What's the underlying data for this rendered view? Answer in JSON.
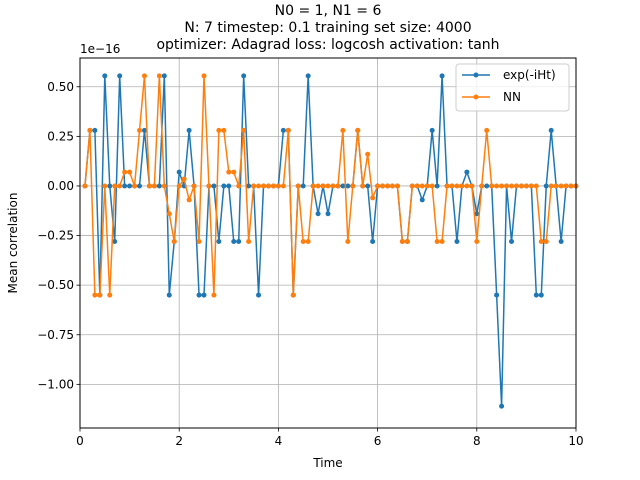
{
  "chart_data": {
    "type": "line",
    "title_lines": [
      "N0 = 1, N1 = 6",
      "N: 7 timestep: 0.1 training set size: 4000",
      "optimizer: Adagrad loss: logcosh activation: tanh"
    ],
    "xlabel": "Time",
    "ylabel": "Mean correlation",
    "offset_label": "1e−16",
    "xlim": [
      0,
      10
    ],
    "ylim": [
      -1.22,
      0.645
    ],
    "xticks": [
      0,
      2,
      4,
      6,
      8,
      10
    ],
    "xtick_labels": [
      "0",
      "2",
      "4",
      "6",
      "8",
      "10"
    ],
    "yticks": [
      0.5,
      0.25,
      0.0,
      -0.25,
      -0.5,
      -0.75,
      -1.0
    ],
    "ytick_labels": [
      "0.50",
      "0.25",
      "0.00",
      "−0.25",
      "−0.50",
      "−0.75",
      "−1.00"
    ],
    "grid": true,
    "legend_position": "top-right",
    "x": [
      0.1,
      0.2,
      0.3,
      0.4,
      0.5,
      0.6,
      0.7,
      0.8,
      0.9,
      1.0,
      1.1,
      1.2,
      1.3,
      1.4,
      1.5,
      1.6,
      1.7,
      1.8,
      1.9,
      2.0,
      2.1,
      2.2,
      2.3,
      2.4,
      2.5,
      2.6,
      2.7,
      2.8,
      2.9,
      3.0,
      3.1,
      3.2,
      3.3,
      3.4,
      3.5,
      3.6,
      3.7,
      3.8,
      3.9,
      4.0,
      4.1,
      4.2,
      4.3,
      4.4,
      4.5,
      4.6,
      4.7,
      4.8,
      4.9,
      5.0,
      5.1,
      5.2,
      5.3,
      5.4,
      5.5,
      5.6,
      5.7,
      5.8,
      5.9,
      6.0,
      6.1,
      6.2,
      6.3,
      6.4,
      6.5,
      6.6,
      6.7,
      6.8,
      6.9,
      7.0,
      7.1,
      7.2,
      7.3,
      7.4,
      7.5,
      7.6,
      7.7,
      7.8,
      7.9,
      8.0,
      8.1,
      8.2,
      8.3,
      8.4,
      8.5,
      8.6,
      8.7,
      8.8,
      8.9,
      9.0,
      9.1,
      9.2,
      9.3,
      9.4,
      9.5,
      9.6,
      9.7,
      9.8,
      9.9,
      10.0
    ],
    "series": [
      {
        "name": "exp(-iHt)",
        "color": "#1f77b4",
        "values": [
          0.0,
          0.28,
          0.28,
          -0.55,
          0.555,
          0.0,
          -0.28,
          0.555,
          0.0,
          0.0,
          0.0,
          0.0,
          0.28,
          0.0,
          0.0,
          0.0,
          0.555,
          -0.55,
          -0.28,
          0.07,
          0.0,
          0.28,
          0.0,
          -0.55,
          -0.55,
          0.0,
          0.0,
          -0.28,
          0.0,
          0.0,
          -0.28,
          -0.28,
          0.555,
          0.0,
          0.0,
          -0.55,
          0.0,
          0.0,
          0.0,
          0.0,
          0.28,
          0.28,
          -0.55,
          0.0,
          0.0,
          0.555,
          0.0,
          -0.14,
          0.0,
          -0.14,
          0.0,
          0.0,
          0.0,
          0.0,
          0.0,
          0.28,
          0.0,
          0.0,
          -0.28,
          0.0,
          0.0,
          0.0,
          0.0,
          0.0,
          -0.28,
          -0.28,
          0.0,
          0.0,
          -0.07,
          0.0,
          0.28,
          0.0,
          0.555,
          0.0,
          0.0,
          -0.28,
          0.0,
          0.07,
          0.0,
          -0.14,
          0.0,
          0.0,
          0.0,
          -0.55,
          -1.11,
          0.0,
          -0.28,
          0.0,
          0.0,
          0.0,
          0.0,
          -0.55,
          -0.55,
          0.0,
          0.28,
          0.0,
          -0.28,
          0.0,
          0.0,
          0.0
        ]
      },
      {
        "name": "NN",
        "color": "#ff7f0e",
        "values": [
          0.0,
          0.28,
          -0.55,
          -0.55,
          0.0,
          -0.55,
          0.0,
          0.0,
          0.07,
          0.07,
          0.0,
          0.28,
          0.555,
          0.0,
          0.0,
          0.555,
          0.0,
          -0.14,
          -0.28,
          0.0,
          0.035,
          -0.07,
          0.0,
          -0.28,
          0.555,
          0.0,
          -0.55,
          0.28,
          0.28,
          0.07,
          0.07,
          0.0,
          0.28,
          -0.28,
          0.0,
          0.0,
          0.0,
          0.0,
          0.0,
          0.0,
          0.0,
          0.28,
          -0.55,
          0.0,
          -0.28,
          -0.28,
          0.0,
          0.0,
          0.0,
          0.0,
          0.0,
          0.0,
          0.28,
          -0.28,
          0.0,
          0.28,
          0.0,
          0.16,
          -0.06,
          0.0,
          0.0,
          0.0,
          0.0,
          0.0,
          -0.28,
          -0.28,
          0.0,
          0.0,
          0.0,
          0.0,
          0.0,
          -0.28,
          -0.28,
          0.0,
          0.0,
          0.0,
          0.0,
          0.0,
          0.0,
          -0.28,
          0.0,
          0.28,
          0.0,
          0.0,
          0.0,
          0.0,
          0.0,
          0.0,
          0.0,
          0.0,
          0.0,
          0.0,
          -0.28,
          -0.28,
          0.0,
          0.0,
          0.0,
          0.0,
          0.0,
          0.0
        ]
      }
    ]
  }
}
